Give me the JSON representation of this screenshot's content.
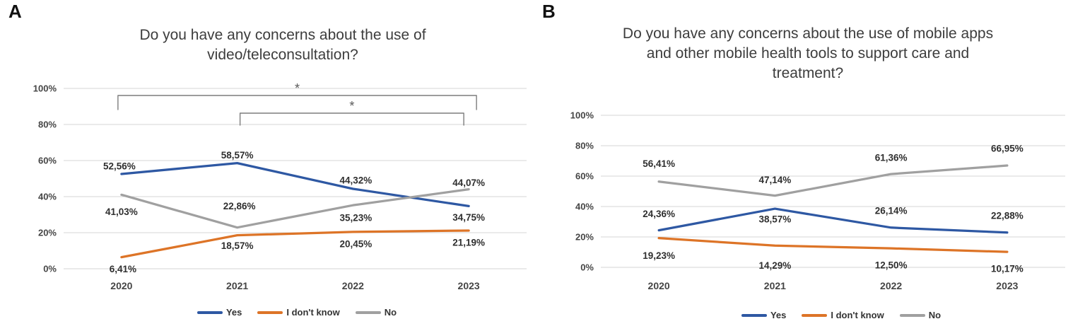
{
  "chart_data": [
    {
      "panel_label": "A",
      "type": "line",
      "title": "Do you have any concerns about the use of video/teleconsultation?",
      "title_lines": [
        "Do you have any concerns about the use of",
        "video/teleconsultation?"
      ],
      "categories": [
        "2020",
        "2021",
        "2022",
        "2023"
      ],
      "series": [
        {
          "name": "Yes",
          "color": "#2e58a3",
          "values": [
            52.56,
            58.57,
            44.32,
            34.75
          ],
          "point_labels": [
            "52,56%",
            "58,57%",
            "44,32%",
            "34,75%"
          ],
          "label_offsets": [
            [
              -3,
              -11
            ],
            [
              0,
              -11
            ],
            [
              4,
              -12
            ],
            [
              0,
              16
            ]
          ]
        },
        {
          "name": "I don't know",
          "color": "#dd7427",
          "values": [
            6.41,
            18.57,
            20.45,
            21.19
          ],
          "point_labels": [
            "6,41%",
            "18,57%",
            "20,45%",
            "21,19%"
          ],
          "label_offsets": [
            [
              2,
              17
            ],
            [
              0,
              15
            ],
            [
              4,
              17
            ],
            [
              0,
              17
            ]
          ]
        },
        {
          "name": "No",
          "color": "#a0a0a0",
          "values": [
            41.03,
            22.86,
            35.23,
            44.07
          ],
          "point_labels": [
            "41,03%",
            "22,86%",
            "35,23%",
            "44,07%"
          ],
          "label_offsets": [
            [
              0,
              24
            ],
            [
              3,
              -30
            ],
            [
              4,
              18
            ],
            [
              0,
              -9
            ]
          ]
        }
      ],
      "ylim": [
        0,
        100
      ],
      "ytick_labels": [
        "0%",
        "20%",
        "40%",
        "60%",
        "80%",
        "100%"
      ],
      "grid": true,
      "legend_position": "bottom",
      "significance_brackets": [
        {
          "from": "2020",
          "to": "2023",
          "label": "*"
        },
        {
          "from": "2021",
          "to": "2023",
          "label": "*"
        }
      ]
    },
    {
      "panel_label": "B",
      "type": "line",
      "title": "Do you have any concerns about the use of mobile apps and other mobile health tools to support care and treatment?",
      "title_lines": [
        "Do you have any concerns about the use of mobile apps",
        "and other mobile health tools to support care and",
        "treatment?"
      ],
      "categories": [
        "2020",
        "2021",
        "2022",
        "2023"
      ],
      "series": [
        {
          "name": "Yes",
          "color": "#2e58a3",
          "values": [
            24.36,
            38.57,
            26.14,
            22.88
          ],
          "point_labels": [
            "24,36%",
            "38,57%",
            "26,14%",
            "22,88%"
          ],
          "label_offsets": [
            [
              0,
              -23
            ],
            [
              0,
              15
            ],
            [
              0,
              -24
            ],
            [
              0,
              -24
            ]
          ]
        },
        {
          "name": "I don't know",
          "color": "#dd7427",
          "values": [
            19.23,
            14.29,
            12.5,
            10.17
          ],
          "point_labels": [
            "19,23%",
            "14,29%",
            "12,50%",
            "10,17%"
          ],
          "label_offsets": [
            [
              0,
              25
            ],
            [
              0,
              28
            ],
            [
              0,
              24
            ],
            [
              0,
              24
            ]
          ]
        },
        {
          "name": "No",
          "color": "#a0a0a0",
          "values": [
            56.41,
            47.14,
            61.36,
            66.95
          ],
          "point_labels": [
            "56,41%",
            "47,14%",
            "61,36%",
            "66,95%"
          ],
          "label_offsets": [
            [
              0,
              -25
            ],
            [
              0,
              -22
            ],
            [
              0,
              -23
            ],
            [
              0,
              -24
            ]
          ]
        }
      ],
      "ylim": [
        0,
        100
      ],
      "ytick_labels": [
        "0%",
        "20%",
        "40%",
        "60%",
        "80%",
        "100%"
      ],
      "grid": true,
      "legend_position": "bottom",
      "significance_brackets": []
    }
  ]
}
